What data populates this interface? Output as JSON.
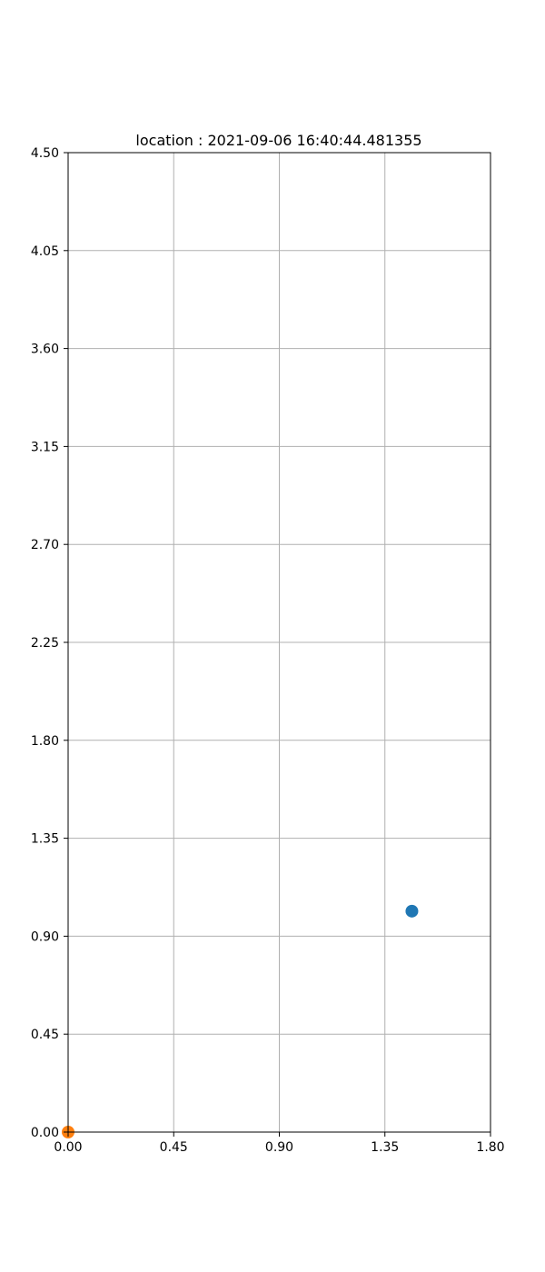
{
  "chart_data": {
    "type": "scatter",
    "title": "location : 2021-09-06 16:40:44.481355",
    "xlabel": "",
    "ylabel": "",
    "xlim": [
      0,
      1.8
    ],
    "ylim": [
      0,
      4.5
    ],
    "x_ticks": [
      "0.00",
      "0.45",
      "0.90",
      "1.35",
      "1.80"
    ],
    "y_ticks": [
      "0.00",
      "0.45",
      "0.90",
      "1.35",
      "1.80",
      "2.25",
      "2.70",
      "3.15",
      "3.60",
      "4.05",
      "4.50"
    ],
    "grid": true,
    "legend": "none",
    "series": [
      {
        "x": [
          1.465
        ],
        "y": [
          1.015
        ],
        "color": "#1f77b4"
      },
      {
        "x": [
          0.0
        ],
        "y": [
          0.0
        ],
        "color": "#ff7f0e"
      }
    ]
  }
}
